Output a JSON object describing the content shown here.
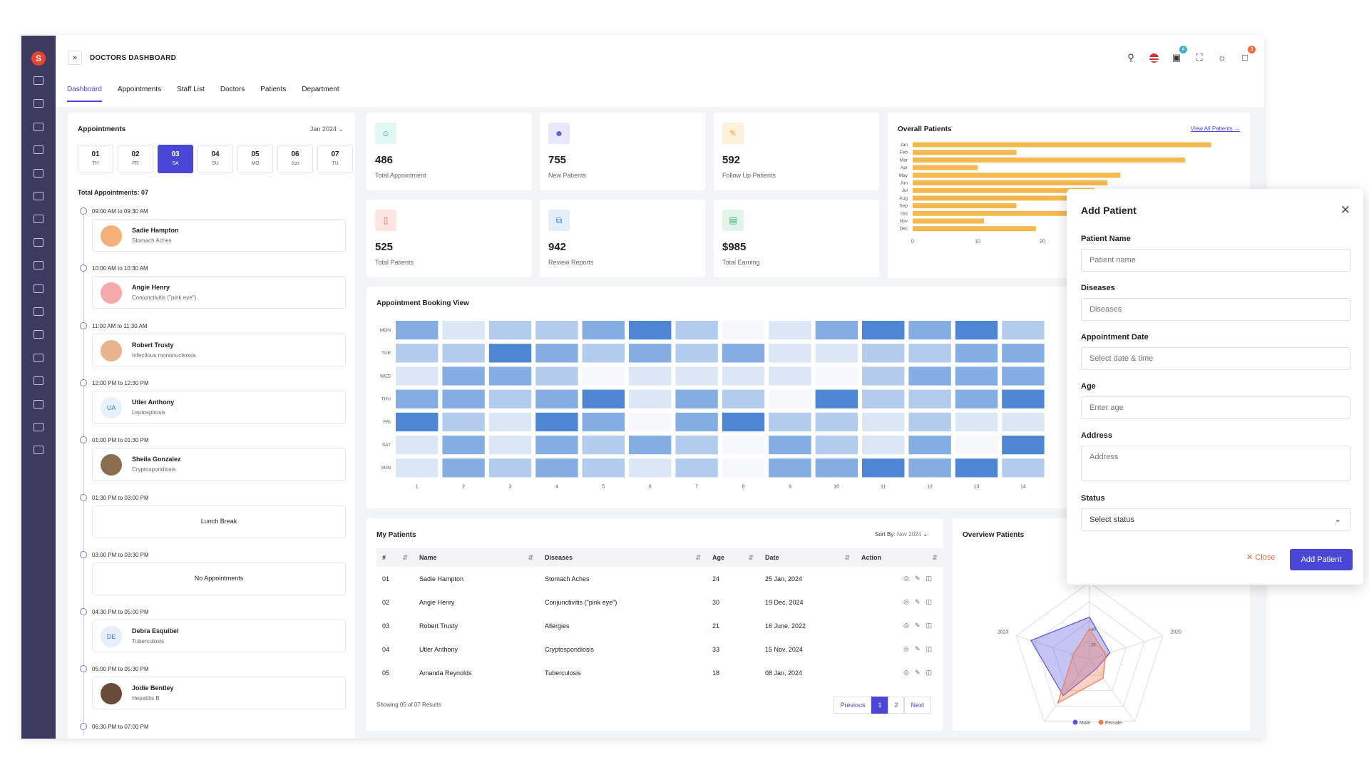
{
  "app": {
    "title": "DOCTORS DASHBOARD",
    "expand_icon": "»"
  },
  "topbar": {
    "cart_badge": "4",
    "notif_badge": "3"
  },
  "tabs": [
    "Dashboard",
    "Appointments",
    "Staff List",
    "Doctors",
    "Patients",
    "Department"
  ],
  "appointments": {
    "title": "Appointments",
    "month": "Jan 2024",
    "days": [
      {
        "n": "01",
        "d": "TH"
      },
      {
        "n": "02",
        "d": "FR"
      },
      {
        "n": "03",
        "d": "SA"
      },
      {
        "n": "04",
        "d": "SU"
      },
      {
        "n": "05",
        "d": "MO"
      },
      {
        "n": "06",
        "d": "Jun"
      },
      {
        "n": "07",
        "d": "TU"
      }
    ],
    "total": "Total Appointments: 07",
    "slots": [
      {
        "time": "09:00 AM to 09:30 AM",
        "name": "Sadie Hampton",
        "desc": "Stomach Aches",
        "initials": ""
      },
      {
        "time": "10:00 AM to 10:30 AM",
        "name": "Angie Henry",
        "desc": "Conjunctivitis (\"pink eye\")",
        "initials": ""
      },
      {
        "time": "11:00 AM to 11:30 AM",
        "name": "Robert Trusty",
        "desc": "Infectious mononucleosis",
        "initials": ""
      },
      {
        "time": "12:00 PM to 12:30 PM",
        "name": "Utler Anthony",
        "desc": "Leptospirosis",
        "initials": "UA"
      },
      {
        "time": "01:00 PM to 01:30 PM",
        "name": "Sheila Gonzalez",
        "desc": "Cryptosporidiosis",
        "initials": ""
      },
      {
        "time": "01:30 PM to 03:00 PM",
        "center": "Lunch Break"
      },
      {
        "time": "03:00 PM to 03:30 PM",
        "center": "No Appointments"
      },
      {
        "time": "04:30 PM to 05:00 PM",
        "name": "Debra Esquibel",
        "desc": "Tuberculosis",
        "initials": "DE"
      },
      {
        "time": "05:00 PM to 05:30 PM",
        "name": "Jodie Bentley",
        "desc": "Hepatitis B",
        "initials": ""
      },
      {
        "time": "06:30 PM to 07:00 PM"
      }
    ]
  },
  "stats": [
    {
      "value": "486",
      "label": "Total Appointment",
      "color": "#e2f6f4"
    },
    {
      "value": "755",
      "label": "New Patients",
      "color": "#e8e7fb"
    },
    {
      "value": "592",
      "label": "Follow Up Patients",
      "color": "#fdf1dc"
    },
    {
      "value": "525",
      "label": "Total Patients",
      "color": "#fde6e1"
    },
    {
      "value": "942",
      "label": "Review Reports",
      "color": "#e3eefb"
    },
    {
      "value": "$985",
      "label": "Total Earning",
      "color": "#e1f5ea"
    }
  ],
  "overall": {
    "title": "Overall Patients",
    "link": "View All Patients →"
  },
  "booking": {
    "title": "Appointment Booking View"
  },
  "my_patients": {
    "title": "My Patients",
    "sort_label": "Sort By:",
    "sort_value": "Nov 2024",
    "columns": [
      "#",
      "Name",
      "Diseases",
      "Age",
      "Date",
      "Action"
    ],
    "rows": [
      [
        "01",
        "Sadie Hampton",
        "Stomach Aches",
        "24",
        "25 Jan, 2024"
      ],
      [
        "02",
        "Angie Henry",
        "Conjunctivitis (\"pink eye\")",
        "30",
        "19 Dec, 2024"
      ],
      [
        "03",
        "Robert Trusty",
        "Allergies",
        "21",
        "16 June, 2022"
      ],
      [
        "04",
        "Utler Anthony",
        "Cryptosporidiosis",
        "33",
        "15 Nov, 2024"
      ],
      [
        "05",
        "Amanda Reynolds",
        "Tuberculosis",
        "18",
        "08 Jan, 2024"
      ]
    ],
    "showing": "Showing 05 of 07 Results",
    "pager": [
      "Previous",
      "1",
      "2",
      "Next"
    ]
  },
  "overview": {
    "title": "Overview Patients"
  },
  "modal": {
    "title": "Add Patient",
    "fields": [
      {
        "label": "Patient Name",
        "placeholder": "Patient name"
      },
      {
        "label": "Diseases",
        "placeholder": "Diseases"
      },
      {
        "label": "Appointment Date",
        "placeholder": "Select date & time"
      },
      {
        "label": "Age",
        "placeholder": "Enter age"
      },
      {
        "label": "Address",
        "placeholder": "Address"
      },
      {
        "label": "Status",
        "placeholder": "Select status"
      }
    ],
    "close": "Close",
    "submit": "Add Patient"
  },
  "chart_data": [
    {
      "type": "bar",
      "orientation": "horizontal",
      "categories": [
        "Jan",
        "Feb",
        "Mar",
        "Apr",
        "May",
        "Jun",
        "Jul",
        "Aug",
        "Sep",
        "Oct",
        "Nov",
        "Dec"
      ],
      "values": [
        46,
        16,
        42,
        10,
        32,
        30,
        28,
        27,
        16,
        30,
        11,
        19
      ],
      "xticks": [
        "0",
        "10",
        "20"
      ],
      "xlim": [
        0,
        50
      ],
      "color": "#f5b84e"
    },
    {
      "type": "heatmap",
      "rows": [
        "MON",
        "TUE",
        "WED",
        "THU",
        "FRI",
        "SAT",
        "SUN"
      ],
      "columns": [
        "1",
        "2",
        "3",
        "4",
        "5",
        "6",
        "7",
        "8",
        "9",
        "10",
        "11",
        "12",
        "13",
        "14"
      ],
      "values": [
        [
          3,
          1,
          2,
          2,
          3,
          4,
          2,
          0,
          1,
          3,
          4,
          3,
          4,
          2
        ],
        [
          2,
          2,
          4,
          3,
          2,
          3,
          2,
          3,
          1,
          1,
          2,
          2,
          3,
          3
        ],
        [
          1,
          3,
          3,
          2,
          0,
          1,
          1,
          1,
          1,
          0,
          2,
          3,
          3,
          3
        ],
        [
          3,
          3,
          2,
          3,
          4,
          1,
          3,
          2,
          0,
          4,
          2,
          2,
          3,
          4
        ],
        [
          4,
          2,
          1,
          4,
          3,
          0,
          3,
          4,
          2,
          2,
          1,
          2,
          1,
          1
        ],
        [
          1,
          3,
          1,
          3,
          2,
          3,
          2,
          0,
          3,
          2,
          1,
          3,
          0,
          4
        ],
        [
          1,
          3,
          2,
          3,
          2,
          1,
          2,
          0,
          3,
          3,
          4,
          3,
          4,
          2
        ]
      ],
      "xticks": [
        "1",
        "2",
        "3",
        "4",
        "5",
        "6",
        "7",
        "8",
        "9",
        "10",
        "11",
        "12",
        "13",
        "14"
      ],
      "color": "#3b7bd6"
    },
    {
      "type": "radar",
      "axes": [
        "2024",
        "2020",
        "2021",
        "2022",
        "2023"
      ],
      "series": [
        {
          "name": "Male",
          "values": [
            55,
            28,
            15,
            58,
            80
          ],
          "color": "#5b55e0"
        },
        {
          "name": "Female",
          "values": [
            40,
            22,
            30,
            70,
            22
          ],
          "color": "#f27b50"
        }
      ],
      "ticks": [
        "20",
        "40"
      ]
    }
  ]
}
